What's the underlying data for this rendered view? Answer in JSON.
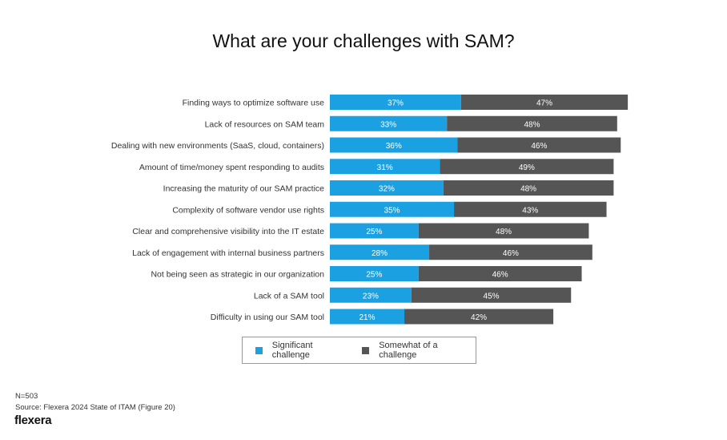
{
  "chart_data": {
    "type": "bar",
    "stacked": true,
    "orientation": "horizontal",
    "title": "What are your challenges with SAM?",
    "categories": [
      "Finding ways to optimize software use",
      "Lack of resources on SAM team",
      "Dealing with new environments (SaaS, cloud, containers)",
      "Amount of time/money spent responding to audits",
      "Increasing the maturity of our SAM practice",
      "Complexity of software vendor use rights",
      "Clear and comprehensive visibility into the IT estate",
      "Lack of engagement with internal business partners",
      "Not being seen as strategic in our organization",
      "Lack of a SAM tool",
      "Difficulty in using our SAM tool"
    ],
    "series": [
      {
        "name": "Significant challenge",
        "color": "#1ba1e2",
        "values": [
          37,
          33,
          36,
          31,
          32,
          35,
          25,
          28,
          25,
          23,
          21
        ]
      },
      {
        "name": "Somewhat of a challenge",
        "color": "#555555",
        "values": [
          47,
          48,
          46,
          49,
          48,
          43,
          48,
          46,
          46,
          45,
          42
        ]
      }
    ],
    "value_suffix": "%",
    "legend_position": "bottom"
  },
  "footer": {
    "n": "N=503",
    "source": "Source: Flexera 2024 State of ITAM (Figure 20)",
    "logo": "flexera"
  }
}
